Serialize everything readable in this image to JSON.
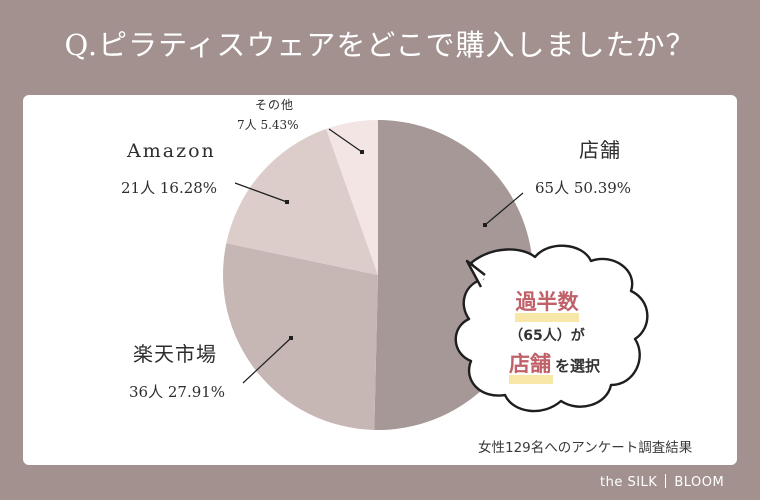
{
  "title": "Q.ピラティスウェアをどこで購入しましたか？",
  "chart_data": {
    "type": "pie",
    "title": "Q.ピラティスウェアをどこで購入しましたか？",
    "slices": [
      {
        "label": "店舗",
        "count": 65,
        "count_text": "65人",
        "percent": 50.39,
        "percent_text": "50.39%",
        "color": "#a59897"
      },
      {
        "label": "楽天市場",
        "count": 36,
        "count_text": "36人",
        "percent": 27.91,
        "percent_text": "27.91%",
        "color": "#c6b7b5"
      },
      {
        "label": "Amazon",
        "count": 21,
        "count_text": "21人",
        "percent": 16.28,
        "percent_text": "16.28%",
        "color": "#dccdcb"
      },
      {
        "label": "その他",
        "count": 7,
        "count_text": "7人",
        "percent": 5.43,
        "percent_text": "5.43%",
        "color": "#f2e5e3"
      }
    ]
  },
  "callout": {
    "line1": "過半数",
    "line2": "（65人）が",
    "line3_highlight": "店舗",
    "line3_rest": "を選択",
    "accent_color": "#c0616a",
    "underline_color": "#f7e7a8"
  },
  "footnote": "女性129名へのアンケート調査結果",
  "brand": {
    "left": "the SILK",
    "right": "BLOOM"
  }
}
